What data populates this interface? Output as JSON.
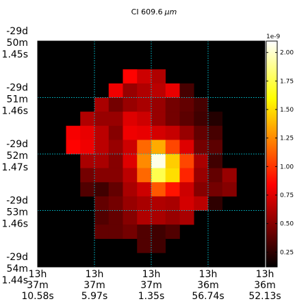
{
  "chart_data": {
    "type": "heatmap",
    "title": "CI 609.6",
    "title_unit": "μm",
    "colormap": "hot",
    "background_color": "#000000",
    "grid": "dotted-cyan",
    "grid_color": "#00c8d8",
    "x_ticks": [
      {
        "lines": [
          "13h",
          "37m",
          "10.58s"
        ]
      },
      {
        "lines": [
          "13h",
          "37m",
          "5.97s"
        ]
      },
      {
        "lines": [
          "13h",
          "37m",
          "1.35s"
        ]
      },
      {
        "lines": [
          "13h",
          "36m",
          "56.74s"
        ]
      },
      {
        "lines": [
          "13h",
          "36m",
          "52.13s"
        ]
      }
    ],
    "y_ticks": [
      {
        "lines": [
          "-29d",
          "50m",
          "1.45s"
        ]
      },
      {
        "lines": [
          "-29d",
          "51m",
          "1.46s"
        ]
      },
      {
        "lines": [
          "-29d",
          "52m",
          "1.47s"
        ]
      },
      {
        "lines": [
          "-29d",
          "53m",
          "1.46s"
        ]
      },
      {
        "lines": [
          "-29d",
          "54m",
          "1.44s"
        ]
      }
    ],
    "colorbar": {
      "exponent_label": "1e-9",
      "vmin": 0.12,
      "vmax": 2.1,
      "ticks": [
        "0.25",
        "0.50",
        "0.75",
        "1.00",
        "1.25",
        "1.50",
        "1.75",
        "2.00"
      ],
      "tick_values": [
        0.25,
        0.5,
        0.75,
        1.0,
        1.25,
        1.5,
        1.75,
        2.0
      ]
    },
    "grid_size": [
      16,
      16
    ],
    "values": [
      [
        0,
        0,
        0,
        0,
        0,
        0,
        0,
        0,
        0,
        0,
        0,
        0,
        0,
        0,
        0,
        0
      ],
      [
        0,
        0,
        0,
        0,
        0,
        0,
        0,
        0,
        0,
        0,
        0,
        0,
        0,
        0,
        0,
        0
      ],
      [
        0,
        0,
        0,
        0,
        0,
        0,
        0.85,
        0.7,
        0.62,
        0,
        0,
        0,
        0,
        0,
        0,
        0
      ],
      [
        0,
        0,
        0,
        0,
        0,
        0.8,
        0.55,
        0.62,
        0.65,
        0.78,
        0.32,
        0,
        0,
        0,
        0,
        0
      ],
      [
        0,
        0,
        0,
        0,
        0.6,
        0.45,
        0.55,
        0.6,
        0.55,
        0.45,
        0.4,
        0.32,
        0,
        0,
        0,
        0
      ],
      [
        0,
        0,
        0,
        0.62,
        0.55,
        0.55,
        0.75,
        0.7,
        0.55,
        0.45,
        0.38,
        0.3,
        0.22,
        0,
        0,
        0
      ],
      [
        0,
        0,
        0.82,
        0.78,
        0.65,
        0.5,
        0.8,
        0.78,
        0.72,
        0.68,
        0.55,
        0.4,
        0.32,
        0,
        0,
        0
      ],
      [
        0,
        0,
        0.85,
        0.8,
        0.65,
        0.55,
        0.7,
        1.15,
        1.35,
        1.05,
        0.75,
        0.45,
        0.38,
        0,
        0,
        0
      ],
      [
        0,
        0,
        0,
        0.6,
        0.6,
        0.5,
        0.75,
        1.25,
        2.05,
        1.45,
        1.05,
        0.6,
        0.3,
        0,
        0,
        0
      ],
      [
        0,
        0,
        0,
        0.45,
        0.5,
        0.5,
        0.65,
        1.15,
        1.75,
        1.5,
        0.95,
        0.55,
        0.4,
        0.55,
        0,
        0
      ],
      [
        0,
        0,
        0,
        0.35,
        0.3,
        0.4,
        0.6,
        0.7,
        1.1,
        0.9,
        0.7,
        0.5,
        0.45,
        0.5,
        0,
        0
      ],
      [
        0,
        0,
        0,
        0,
        0.4,
        0.45,
        0.55,
        0.6,
        0.62,
        0.6,
        0.72,
        0.65,
        0.25,
        0,
        0,
        0
      ],
      [
        0,
        0,
        0,
        0,
        0.35,
        0.4,
        0.5,
        0.62,
        0.6,
        0.55,
        0.6,
        0,
        0,
        0,
        0,
        0
      ],
      [
        0,
        0,
        0,
        0,
        0.4,
        0.4,
        0.45,
        0.35,
        0.3,
        0.35,
        0,
        0,
        0,
        0,
        0,
        0
      ],
      [
        0,
        0,
        0,
        0,
        0,
        0,
        0,
        0.35,
        0.3,
        0,
        0,
        0,
        0,
        0,
        0,
        0
      ],
      [
        0,
        0,
        0,
        0,
        0,
        0,
        0,
        0,
        0,
        0,
        0,
        0,
        0,
        0,
        0,
        0
      ]
    ]
  }
}
